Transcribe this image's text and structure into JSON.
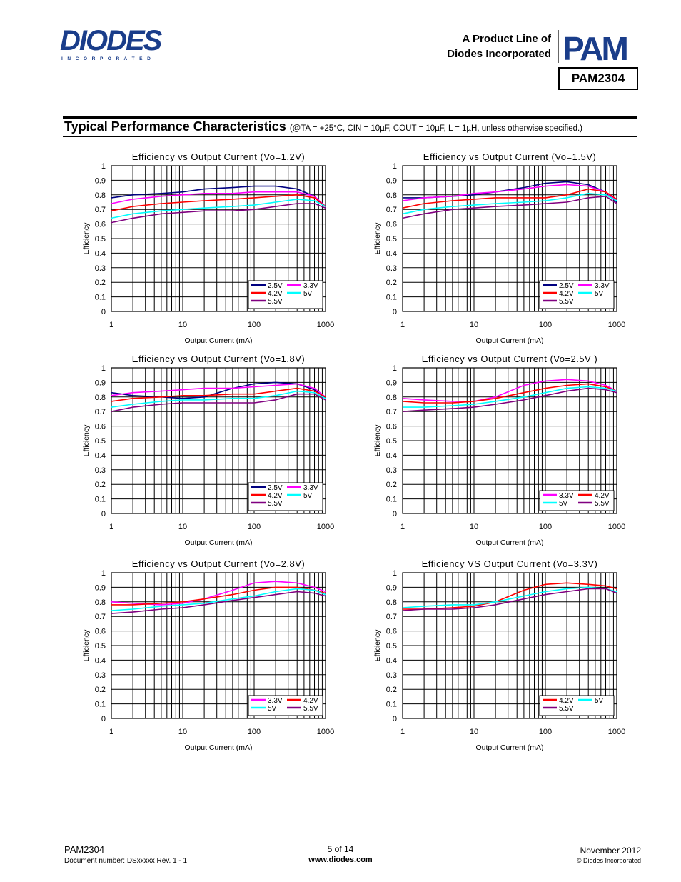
{
  "header": {
    "company_logo": "DIODES",
    "company_sub": "I N C O R P O R A T E D",
    "product_line_1": "A Product Line of",
    "product_line_2": "Diodes Incorporated",
    "pam_logo": "PAM",
    "part_number": "PAM2304"
  },
  "section": {
    "title": "Typical Performance Characteristics",
    "conditions": "(@TA = +25°C, CIN = 10µF, COUT = 10µF, L = 1µH, unless otherwise specified.)"
  },
  "colors": {
    "2.5V": "#000080",
    "3.3V": "#ff00ff",
    "4.2V": "#ff0000",
    "5V": "#00ffff",
    "5.5V": "#800080"
  },
  "chart_data": [
    {
      "type": "line",
      "title": "Efficiency vs Output Current (Vo=1.2V)",
      "xlabel": "Output Current (mA)",
      "ylabel": "Efficiency",
      "xscale": "log",
      "xlim": [
        1,
        1000
      ],
      "ylim": [
        0,
        1
      ],
      "xticks": [
        "1",
        "10",
        "100",
        "1000"
      ],
      "yticks": [
        "0",
        "0.1",
        "0.2",
        "0.3",
        "0.4",
        "0.5",
        "0.6",
        "0.7",
        "0.8",
        "0.9",
        "1"
      ],
      "legend_rows": [
        [
          "2.5V",
          "3.3V"
        ],
        [
          "4.2V",
          "5V"
        ],
        [
          "5.5V"
        ]
      ],
      "x": [
        1,
        2,
        5,
        10,
        20,
        50,
        100,
        200,
        400,
        700,
        1000
      ],
      "series": [
        {
          "name": "2.5V",
          "values": [
            0.78,
            0.8,
            0.81,
            0.82,
            0.84,
            0.85,
            0.86,
            0.86,
            0.84,
            0.79,
            0.72
          ]
        },
        {
          "name": "3.3V",
          "values": [
            0.74,
            0.77,
            0.79,
            0.8,
            0.81,
            0.81,
            0.82,
            0.82,
            0.82,
            0.79,
            0.72
          ]
        },
        {
          "name": "4.2V",
          "values": [
            0.69,
            0.72,
            0.74,
            0.75,
            0.76,
            0.77,
            0.78,
            0.79,
            0.8,
            0.78,
            0.72
          ]
        },
        {
          "name": "5V",
          "values": [
            0.64,
            0.67,
            0.69,
            0.7,
            0.71,
            0.72,
            0.73,
            0.75,
            0.77,
            0.76,
            0.72
          ]
        },
        {
          "name": "5.5V",
          "values": [
            0.61,
            0.64,
            0.67,
            0.68,
            0.69,
            0.69,
            0.7,
            0.72,
            0.74,
            0.74,
            0.71
          ]
        }
      ]
    },
    {
      "type": "line",
      "title": "Efficiency vs Output Current (Vo=1.5V)",
      "xlabel": "Output Current (mA)",
      "ylabel": "Efficiency",
      "xscale": "log",
      "xlim": [
        1,
        1000
      ],
      "ylim": [
        0,
        1
      ],
      "xticks": [
        "1",
        "10",
        "100",
        "1000"
      ],
      "yticks": [
        "0",
        "0.1",
        "0.2",
        "0.3",
        "0.4",
        "0.5",
        "0.6",
        "0.7",
        "0.8",
        "0.9",
        "1"
      ],
      "legend_rows": [
        [
          "2.5V",
          "3.3V"
        ],
        [
          "4.2V",
          "5V"
        ],
        [
          "5.5V"
        ]
      ],
      "x": [
        1,
        2,
        5,
        10,
        20,
        50,
        100,
        200,
        400,
        700,
        1000
      ],
      "series": [
        {
          "name": "2.5V",
          "values": [
            0.78,
            0.78,
            0.79,
            0.8,
            0.82,
            0.85,
            0.88,
            0.89,
            0.87,
            0.82,
            0.75
          ]
        },
        {
          "name": "3.3V",
          "values": [
            0.76,
            0.78,
            0.79,
            0.81,
            0.82,
            0.84,
            0.86,
            0.87,
            0.86,
            0.82,
            0.76
          ]
        },
        {
          "name": "4.2V",
          "values": [
            0.71,
            0.74,
            0.76,
            0.77,
            0.78,
            0.78,
            0.78,
            0.8,
            0.84,
            0.82,
            0.77
          ]
        },
        {
          "name": "5V",
          "values": [
            0.67,
            0.7,
            0.72,
            0.73,
            0.74,
            0.75,
            0.76,
            0.78,
            0.81,
            0.8,
            0.76
          ]
        },
        {
          "name": "5.5V",
          "values": [
            0.64,
            0.67,
            0.7,
            0.71,
            0.72,
            0.73,
            0.74,
            0.75,
            0.78,
            0.79,
            0.74
          ]
        }
      ]
    },
    {
      "type": "line",
      "title": "Efficiency vs Output Current (Vo=1.8V)",
      "xlabel": "Output Current (mA)",
      "ylabel": "Efficiency",
      "xscale": "log",
      "xlim": [
        1,
        1000
      ],
      "ylim": [
        0,
        1
      ],
      "xticks": [
        "1",
        "10",
        "100",
        "1000"
      ],
      "yticks": [
        "0",
        "0.1",
        "0.2",
        "0.3",
        "0.4",
        "0.5",
        "0.6",
        "0.7",
        "0.8",
        "0.9",
        "1"
      ],
      "legend_rows": [
        [
          "2.5V",
          "3.3V"
        ],
        [
          "4.2V",
          "5V"
        ],
        [
          "5.5V"
        ]
      ],
      "x": [
        1,
        2,
        5,
        10,
        20,
        50,
        100,
        200,
        400,
        700,
        1000
      ],
      "series": [
        {
          "name": "2.5V",
          "values": [
            0.83,
            0.81,
            0.8,
            0.79,
            0.8,
            0.86,
            0.89,
            0.9,
            0.89,
            0.85,
            0.79
          ]
        },
        {
          "name": "3.3V",
          "values": [
            0.81,
            0.83,
            0.84,
            0.85,
            0.86,
            0.86,
            0.87,
            0.88,
            0.89,
            0.86,
            0.8
          ]
        },
        {
          "name": "4.2V",
          "values": [
            0.77,
            0.79,
            0.8,
            0.81,
            0.81,
            0.82,
            0.82,
            0.84,
            0.86,
            0.84,
            0.8
          ]
        },
        {
          "name": "5V",
          "values": [
            0.73,
            0.75,
            0.77,
            0.78,
            0.78,
            0.79,
            0.79,
            0.81,
            0.84,
            0.83,
            0.79
          ]
        },
        {
          "name": "5.5V",
          "values": [
            0.7,
            0.73,
            0.75,
            0.76,
            0.76,
            0.76,
            0.76,
            0.78,
            0.82,
            0.82,
            0.78
          ]
        }
      ]
    },
    {
      "type": "line",
      "title": "Efficiency vs Output Current (Vo=2.5V )",
      "xlabel": "Output Current (mA)",
      "ylabel": "Efficiency",
      "xscale": "log",
      "xlim": [
        1,
        1000
      ],
      "ylim": [
        0,
        1
      ],
      "xticks": [
        "1",
        "10",
        "100",
        "1000"
      ],
      "yticks": [
        "0",
        "0.1",
        "0.2",
        "0.3",
        "0.4",
        "0.5",
        "0.6",
        "0.7",
        "0.8",
        "0.9",
        "1"
      ],
      "legend_rows": [
        [
          "3.3V",
          "4.2V"
        ],
        [
          "5V",
          "5.5V"
        ]
      ],
      "x": [
        1,
        2,
        5,
        10,
        20,
        50,
        100,
        200,
        400,
        700,
        1000
      ],
      "series": [
        {
          "name": "3.3V",
          "values": [
            0.79,
            0.78,
            0.77,
            0.77,
            0.8,
            0.88,
            0.91,
            0.92,
            0.91,
            0.88,
            0.84
          ]
        },
        {
          "name": "4.2V",
          "values": [
            0.77,
            0.76,
            0.76,
            0.77,
            0.79,
            0.83,
            0.86,
            0.88,
            0.89,
            0.87,
            0.84
          ]
        },
        {
          "name": "5V",
          "values": [
            0.73,
            0.73,
            0.74,
            0.75,
            0.77,
            0.8,
            0.83,
            0.86,
            0.87,
            0.86,
            0.84
          ]
        },
        {
          "name": "5.5V",
          "values": [
            0.7,
            0.71,
            0.72,
            0.73,
            0.75,
            0.78,
            0.81,
            0.84,
            0.86,
            0.85,
            0.83
          ]
        }
      ]
    },
    {
      "type": "line",
      "title": "Efficiency vs Output Current  (Vo=2.8V)",
      "xlabel": "Output Current (mA)",
      "ylabel": "Efficiency",
      "xscale": "log",
      "xlim": [
        1,
        1000
      ],
      "ylim": [
        0,
        1
      ],
      "xticks": [
        "1",
        "10",
        "100",
        "1000"
      ],
      "yticks": [
        "0",
        "0.1",
        "0.2",
        "0.3",
        "0.4",
        "0.5",
        "0.6",
        "0.7",
        "0.8",
        "0.9",
        "1"
      ],
      "legend_rows": [
        [
          "3.3V",
          "4.2V"
        ],
        [
          "5V",
          "5.5V"
        ]
      ],
      "x": [
        1,
        2,
        5,
        10,
        20,
        50,
        100,
        200,
        400,
        700,
        1000
      ],
      "series": [
        {
          "name": "3.3V",
          "values": [
            0.8,
            0.79,
            0.78,
            0.79,
            0.82,
            0.88,
            0.93,
            0.94,
            0.93,
            0.9,
            0.87
          ]
        },
        {
          "name": "4.2V",
          "values": [
            0.78,
            0.78,
            0.79,
            0.8,
            0.82,
            0.85,
            0.88,
            0.9,
            0.9,
            0.88,
            0.86
          ]
        },
        {
          "name": "5V",
          "values": [
            0.74,
            0.75,
            0.77,
            0.78,
            0.79,
            0.82,
            0.84,
            0.87,
            0.89,
            0.88,
            0.85
          ]
        },
        {
          "name": "5.5V",
          "values": [
            0.72,
            0.73,
            0.75,
            0.76,
            0.78,
            0.81,
            0.83,
            0.85,
            0.87,
            0.86,
            0.84
          ]
        }
      ]
    },
    {
      "type": "line",
      "title": "Efficiency VS Output Current (Vo=3.3V)",
      "xlabel": "Output Current (mA)",
      "ylabel": "Efficiency",
      "xscale": "log",
      "xlim": [
        1,
        1000
      ],
      "ylim": [
        0,
        1
      ],
      "xticks": [
        "1",
        "10",
        "100",
        "1000"
      ],
      "yticks": [
        "0",
        "0.1",
        "0.2",
        "0.3",
        "0.4",
        "0.5",
        "0.6",
        "0.7",
        "0.8",
        "0.9",
        "1"
      ],
      "legend_rows": [
        [
          "4.2V",
          "5V"
        ],
        [
          "5.5V"
        ]
      ],
      "x": [
        1,
        2,
        5,
        10,
        20,
        50,
        100,
        200,
        400,
        700,
        1000
      ],
      "series": [
        {
          "name": "4.2V",
          "values": [
            0.75,
            0.75,
            0.76,
            0.77,
            0.8,
            0.88,
            0.92,
            0.93,
            0.92,
            0.91,
            0.89
          ]
        },
        {
          "name": "5V",
          "values": [
            0.76,
            0.77,
            0.78,
            0.78,
            0.8,
            0.84,
            0.87,
            0.89,
            0.9,
            0.89,
            0.87
          ]
        },
        {
          "name": "5.5V",
          "values": [
            0.74,
            0.75,
            0.75,
            0.76,
            0.78,
            0.82,
            0.85,
            0.87,
            0.89,
            0.89,
            0.86
          ]
        }
      ]
    }
  ],
  "footer": {
    "part": "PAM2304",
    "doc_number": "Document number: DSxxxxx Rev. 1 - 1",
    "page": "5 of 14",
    "website": "www.diodes.com",
    "date": "November 2012",
    "copyright": "© Diodes Incorporated"
  }
}
